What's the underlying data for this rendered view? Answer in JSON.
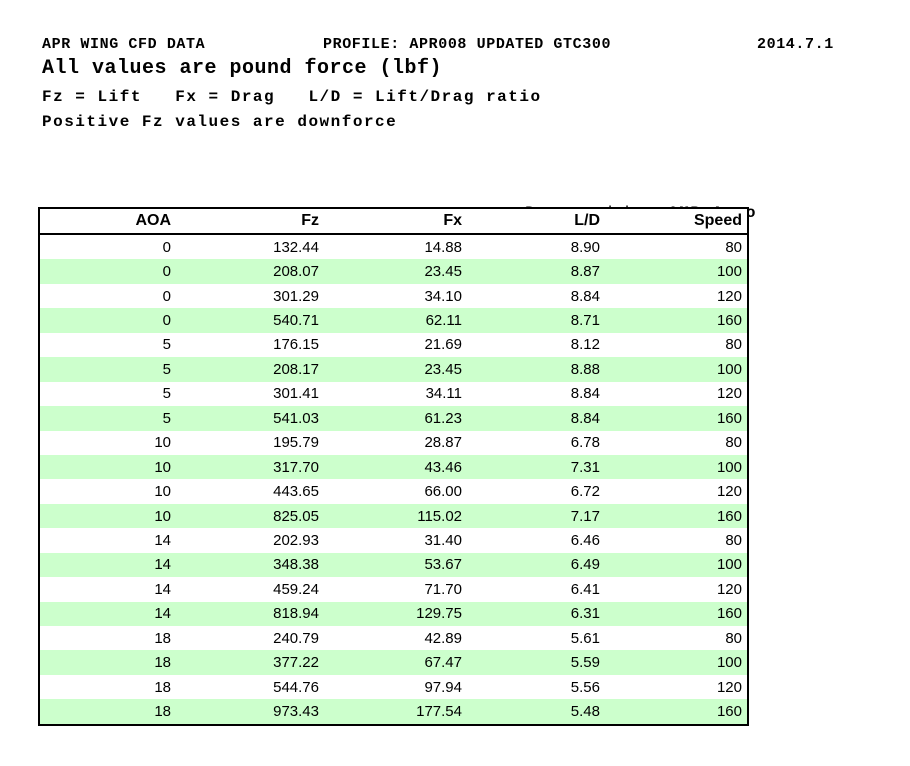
{
  "header": {
    "line1_left": "APR WING CFD DATA",
    "line1_middle": "PROFILE: APR008 UPDATED GTC300",
    "line1_right": "2014.7.1",
    "line2": "All values are pound force (lbf)",
    "line3": "Fz = Lift   Fx = Drag   L/D = Lift/Drag ratio",
    "line4": "Positive Fz values are downforce"
  },
  "prepared_by": {
    "label": "Prepared by:",
    "value": "AMB Aero"
  },
  "table": {
    "columns": [
      "AOA",
      "Fz",
      "Fx",
      "L/D",
      "Speed"
    ],
    "rows": [
      [
        "0",
        "132.44",
        "14.88",
        "8.90",
        "80"
      ],
      [
        "0",
        "208.07",
        "23.45",
        "8.87",
        "100"
      ],
      [
        "0",
        "301.29",
        "34.10",
        "8.84",
        "120"
      ],
      [
        "0",
        "540.71",
        "62.11",
        "8.71",
        "160"
      ],
      [
        "5",
        "176.15",
        "21.69",
        "8.12",
        "80"
      ],
      [
        "5",
        "208.17",
        "23.45",
        "8.88",
        "100"
      ],
      [
        "5",
        "301.41",
        "34.11",
        "8.84",
        "120"
      ],
      [
        "5",
        "541.03",
        "61.23",
        "8.84",
        "160"
      ],
      [
        "10",
        "195.79",
        "28.87",
        "6.78",
        "80"
      ],
      [
        "10",
        "317.70",
        "43.46",
        "7.31",
        "100"
      ],
      [
        "10",
        "443.65",
        "66.00",
        "6.72",
        "120"
      ],
      [
        "10",
        "825.05",
        "115.02",
        "7.17",
        "160"
      ],
      [
        "14",
        "202.93",
        "31.40",
        "6.46",
        "80"
      ],
      [
        "14",
        "348.38",
        "53.67",
        "6.49",
        "100"
      ],
      [
        "14",
        "459.24",
        "71.70",
        "6.41",
        "120"
      ],
      [
        "14",
        "818.94",
        "129.75",
        "6.31",
        "160"
      ],
      [
        "18",
        "240.79",
        "42.89",
        "5.61",
        "80"
      ],
      [
        "18",
        "377.22",
        "67.47",
        "5.59",
        "100"
      ],
      [
        "18",
        "544.76",
        "97.94",
        "5.56",
        "120"
      ],
      [
        "18",
        "973.43",
        "177.54",
        "5.48",
        "160"
      ]
    ],
    "colors": {
      "band_green": "#ccffcc",
      "band_white": "#ffffff",
      "border": "#000000",
      "text": "#000000"
    }
  }
}
